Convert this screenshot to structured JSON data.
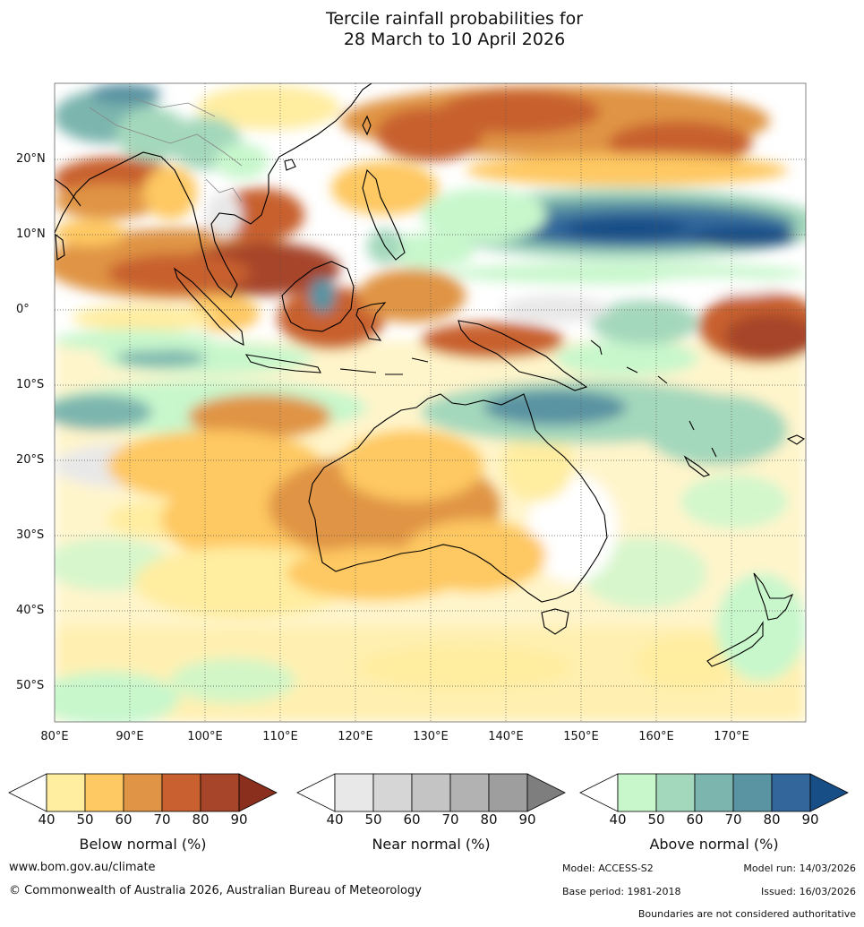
{
  "title": {
    "line1": "Tercile rainfall probabilities for",
    "line2": "28 March to 10 April 2026"
  },
  "map": {
    "lat_ticks": [
      "20°N",
      "10°N",
      "0°",
      "10°S",
      "20°S",
      "30°S",
      "40°S",
      "50°S"
    ],
    "lon_ticks": [
      "80°E",
      "90°E",
      "100°E",
      "110°E",
      "120°E",
      "130°E",
      "140°E",
      "150°E",
      "160°E",
      "170°E"
    ],
    "extent": {
      "lon": [
        80,
        180
      ],
      "lat": [
        -55,
        30
      ]
    }
  },
  "legends": [
    {
      "label": "Below normal (%)",
      "ticks": [
        "40",
        "50",
        "60",
        "70",
        "80",
        "90"
      ],
      "colors": [
        "#ffeda0",
        "#fec862",
        "#e09445",
        "#c8612f",
        "#a6452a",
        "#8a2f1d"
      ]
    },
    {
      "label": "Near normal (%)",
      "ticks": [
        "40",
        "50",
        "60",
        "70",
        "80",
        "90"
      ],
      "colors": [
        "#e8e8e8",
        "#d6d6d6",
        "#c4c4c4",
        "#b2b2b2",
        "#9e9e9e",
        "#7e7e7e"
      ]
    },
    {
      "label": "Above normal (%)",
      "ticks": [
        "40",
        "50",
        "60",
        "70",
        "80",
        "90"
      ],
      "colors": [
        "#c8f7cc",
        "#a4d8bc",
        "#7cb5ae",
        "#5a93a2",
        "#33679b",
        "#174e86"
      ]
    }
  ],
  "footer": {
    "url": "www.bom.gov.au/climate",
    "copyright": "© Commonwealth of Australia 2026, Australian Bureau of Meteorology",
    "model": "Model: ACCESS-S2",
    "model_run": "Model run: 14/03/2026",
    "base_period": "Base period: 1981-2018",
    "issued": "Issued: 16/03/2026",
    "disclaimer": "Boundaries are not considered authoritative"
  }
}
